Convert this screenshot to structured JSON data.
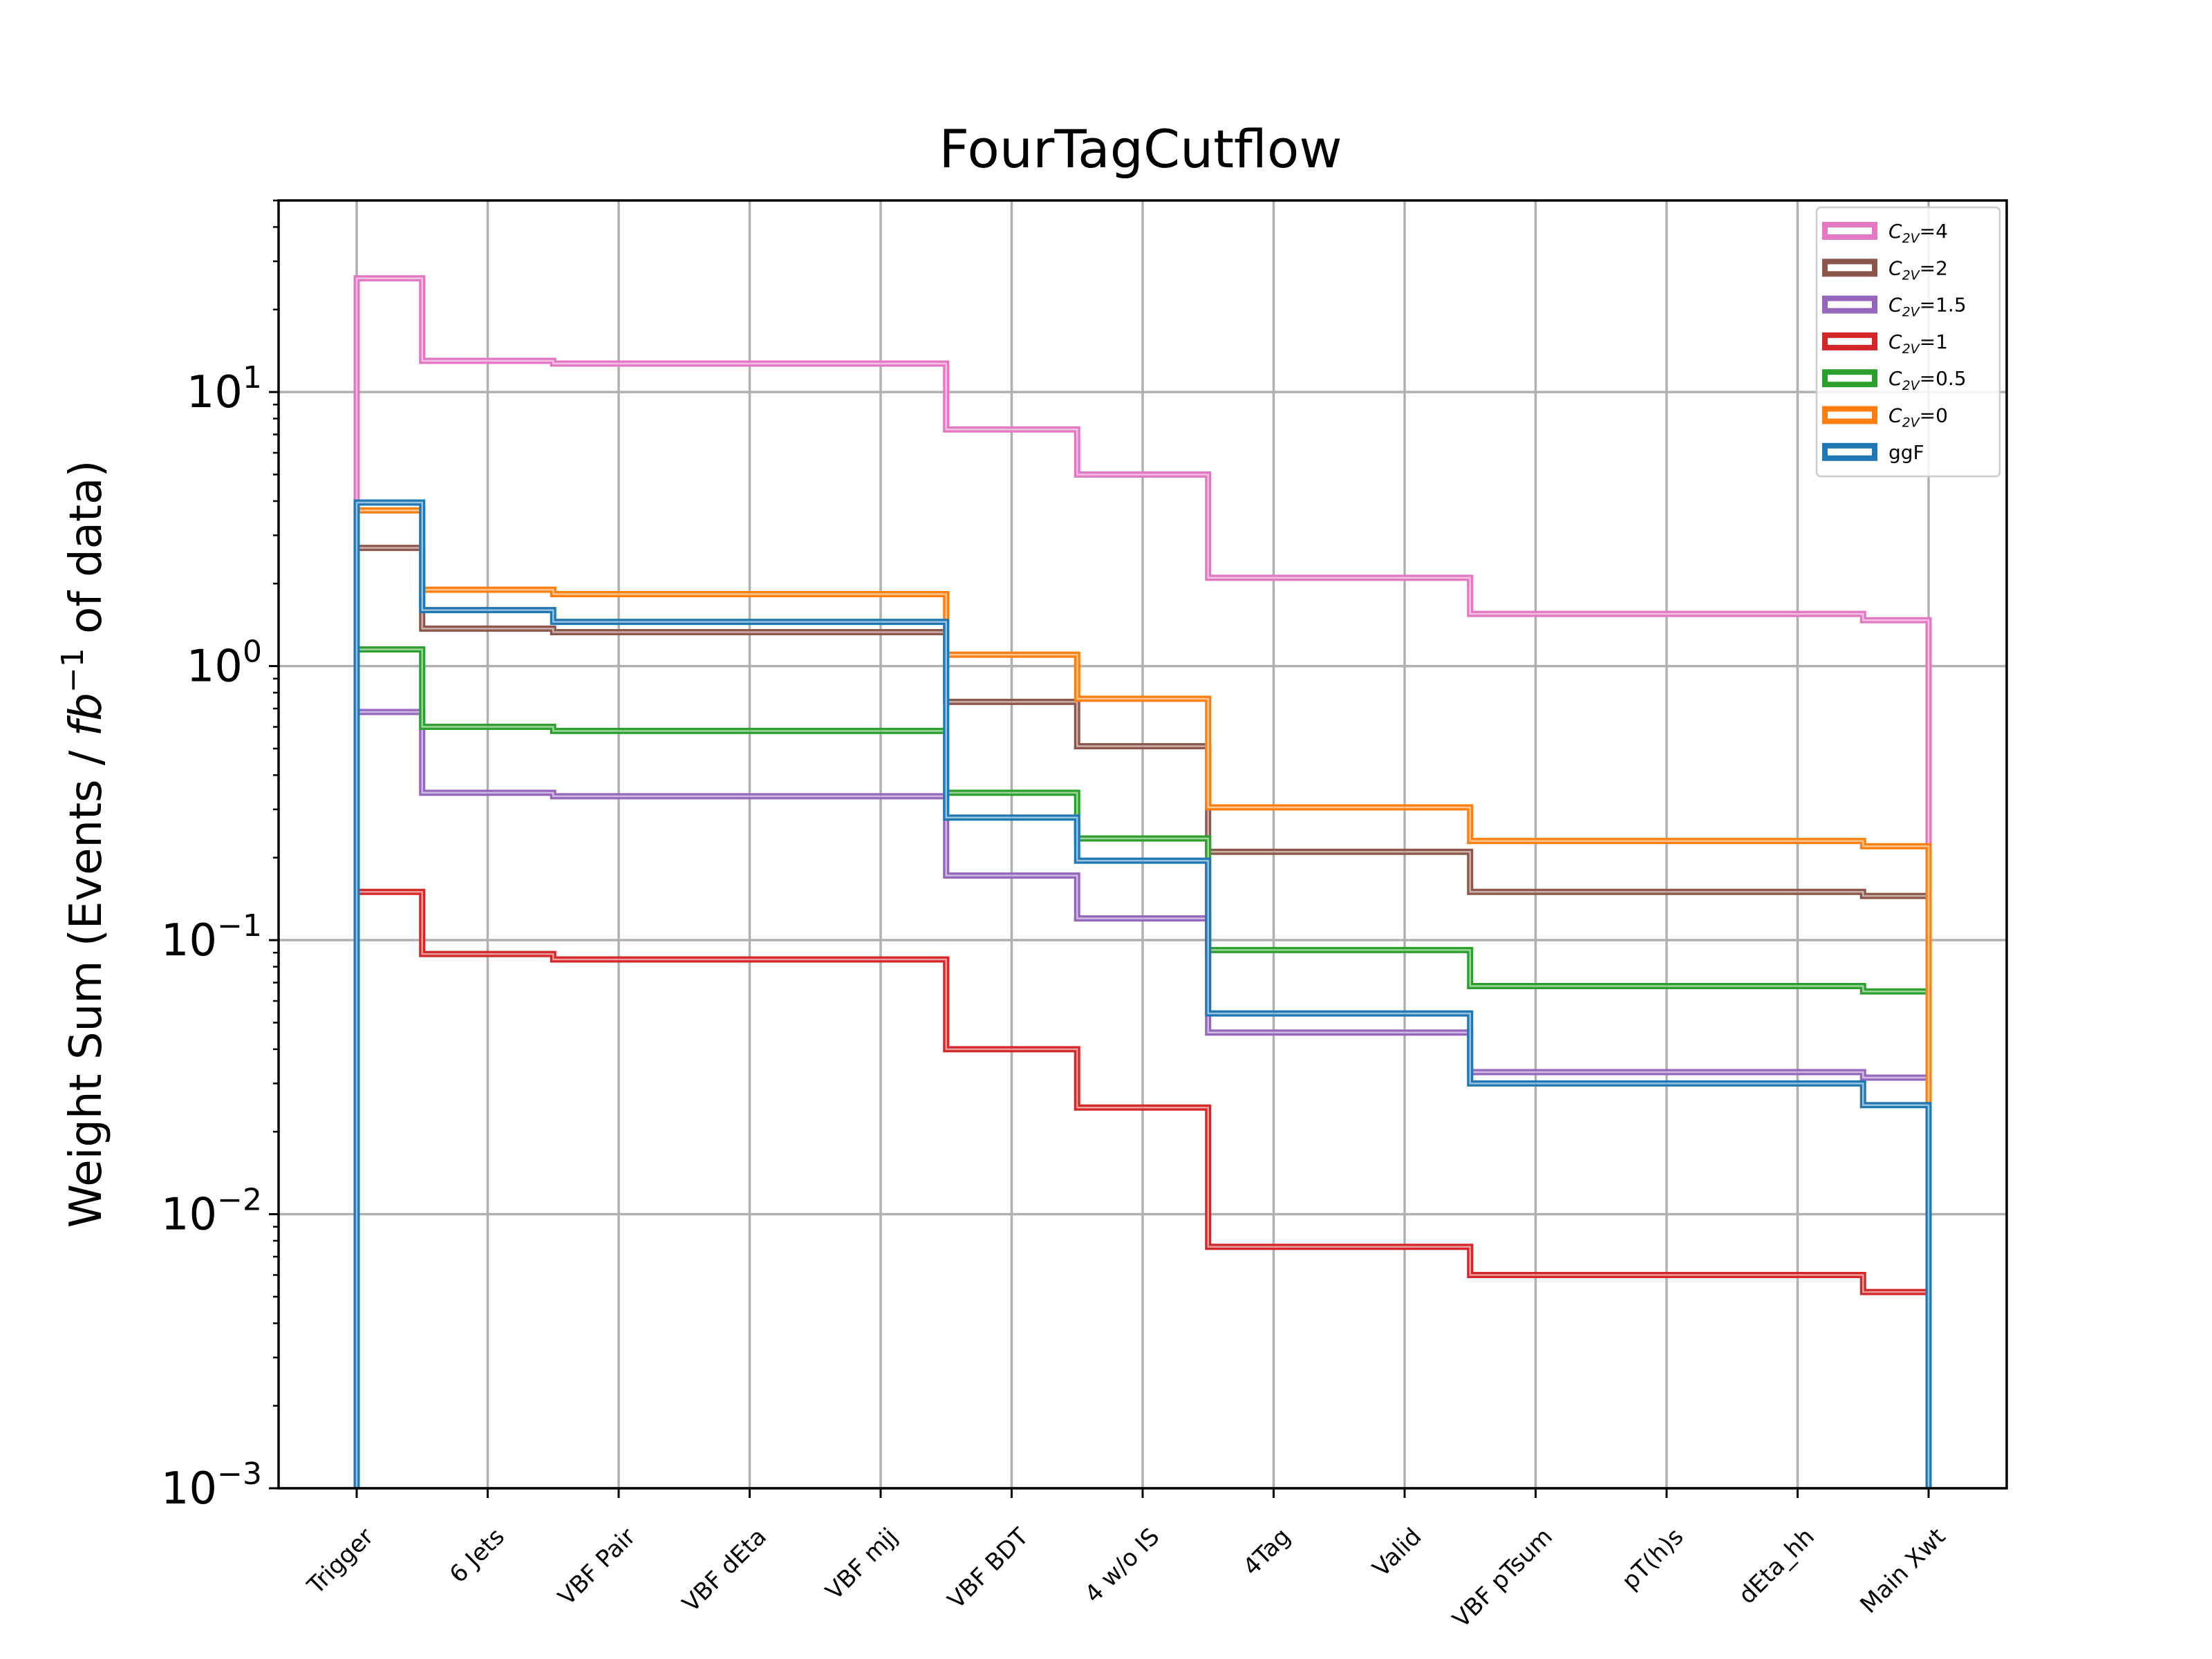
{
  "chart_data": {
    "type": "line",
    "title": "FourTagCutflow",
    "xlabel": "",
    "ylabel": "Weight Sum (Events / fb^-1 of data)",
    "ylabel_parts": {
      "pre": "Weight Sum (Events / ",
      "italic": "fb",
      "sup": "−1",
      "post": " of data)"
    },
    "yscale": "log",
    "ylim": [
      0.001,
      50
    ],
    "grid": true,
    "legend_position": "top-right",
    "yticks": [
      {
        "base": "10",
        "exp": "1",
        "value": 10
      },
      {
        "base": "10",
        "exp": "0",
        "value": 1
      },
      {
        "base": "10",
        "exp": "−1",
        "value": 0.1
      },
      {
        "base": "10",
        "exp": "−2",
        "value": 0.01
      },
      {
        "base": "10",
        "exp": "−3",
        "value": 0.001
      }
    ],
    "categories": [
      "Trigger",
      "6 Jets",
      "VBF Pair",
      "VBF dEta",
      "VBF mjj",
      "VBF BDT",
      "4 w/o IS",
      "4Tag",
      "Valid",
      "VBF pTsum",
      "pT(h)s",
      "dEta_hh",
      "Main Xwt"
    ],
    "series": [
      {
        "name": "C2V=4",
        "label_base": "C",
        "label_sub": "2V",
        "label_val": "=4",
        "color": "#e377c2",
        "values": [
          26,
          13,
          12.7,
          12.7,
          12.7,
          7.3,
          5.0,
          2.1,
          2.1,
          1.55,
          1.55,
          1.55,
          1.47
        ]
      },
      {
        "name": "C2V=2",
        "label_base": "C",
        "label_sub": "2V",
        "label_val": "=2",
        "color": "#8c564b",
        "values": [
          2.7,
          1.37,
          1.33,
          1.33,
          1.33,
          0.74,
          0.51,
          0.21,
          0.21,
          0.15,
          0.15,
          0.15,
          0.145
        ]
      },
      {
        "name": "C2V=1.5",
        "label_base": "C",
        "label_sub": "2V",
        "label_val": "=1.5",
        "color": "#9467bd",
        "values": [
          0.68,
          0.345,
          0.335,
          0.335,
          0.335,
          0.172,
          0.12,
          0.046,
          0.046,
          0.033,
          0.033,
          0.033,
          0.0315
        ]
      },
      {
        "name": "C2V=1",
        "label_base": "C",
        "label_sub": "2V",
        "label_val": "=1",
        "color": "#d62728",
        "values": [
          0.15,
          0.089,
          0.085,
          0.085,
          0.085,
          0.04,
          0.0245,
          0.0076,
          0.0076,
          0.006,
          0.006,
          0.006,
          0.0052
        ]
      },
      {
        "name": "C2V=0.5",
        "label_base": "C",
        "label_sub": "2V",
        "label_val": "=0.5",
        "color": "#2ca02c",
        "values": [
          1.15,
          0.6,
          0.58,
          0.58,
          0.58,
          0.345,
          0.235,
          0.092,
          0.092,
          0.068,
          0.068,
          0.068,
          0.065
        ]
      },
      {
        "name": "C2V=0",
        "label_base": "C",
        "label_sub": "2V",
        "label_val": "=0",
        "color": "#ff7f0e",
        "values": [
          3.7,
          1.9,
          1.83,
          1.83,
          1.83,
          1.1,
          0.76,
          0.305,
          0.305,
          0.23,
          0.23,
          0.23,
          0.22
        ]
      },
      {
        "name": "ggF",
        "label_base": "ggF",
        "label_sub": "",
        "label_val": "",
        "color": "#1f77b4",
        "values": [
          3.95,
          1.6,
          1.45,
          1.45,
          1.45,
          0.28,
          0.195,
          0.054,
          0.054,
          0.03,
          0.03,
          0.03,
          0.025
        ]
      }
    ]
  }
}
